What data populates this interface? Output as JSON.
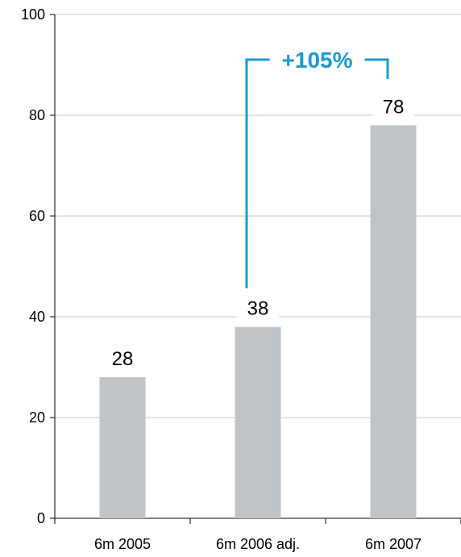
{
  "chart_data": {
    "type": "bar",
    "categories": [
      "6m 2005",
      "6m 2006 adj.",
      "6m 2007"
    ],
    "values": [
      28,
      38,
      78
    ],
    "data_labels": [
      "28",
      "38",
      "78"
    ],
    "ylim": [
      0,
      100
    ],
    "yticks": [
      0,
      20,
      40,
      60,
      80,
      100
    ],
    "ytick_labels": [
      "0",
      "20",
      "40",
      "60",
      "80",
      "100"
    ],
    "grid": true,
    "bar_color": "#bec4c7",
    "annotation": {
      "text": "+105%",
      "from_category": "6m 2006 adj.",
      "to_category": "6m 2007",
      "color": "#1b9ad6"
    }
  }
}
